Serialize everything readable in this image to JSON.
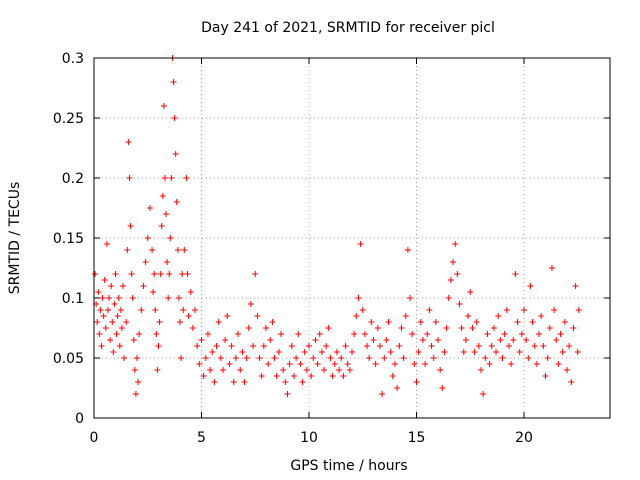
{
  "chart_data": {
    "type": "scatter",
    "title": "Day 241 of 2021, SRMTID for receiver picl",
    "xlabel": "GPS time / hours",
    "ylabel": "SRMTID / TECUs",
    "xlim": [
      0,
      24
    ],
    "ylim": [
      0,
      0.3
    ],
    "xticks": [
      0,
      5,
      10,
      15,
      20
    ],
    "xtick_labels": [
      "0",
      "5",
      "10",
      "15",
      "20"
    ],
    "yticks": [
      0,
      0.05,
      0.1,
      0.15,
      0.2,
      0.25,
      0.3
    ],
    "ytick_labels": [
      "0",
      "0.05",
      "0.1",
      "0.15",
      "0.2",
      "0.25",
      "0.3"
    ],
    "grid": true,
    "marker": "plus",
    "color": "#ff0000",
    "series": [
      {
        "name": "SRMTID",
        "points": [
          [
            0.05,
            0.12
          ],
          [
            0.1,
            0.095
          ],
          [
            0.15,
            0.08
          ],
          [
            0.2,
            0.105
          ],
          [
            0.25,
            0.07
          ],
          [
            0.3,
            0.09
          ],
          [
            0.35,
            0.06
          ],
          [
            0.4,
            0.1
          ],
          [
            0.45,
            0.085
          ],
          [
            0.5,
            0.115
          ],
          [
            0.55,
            0.075
          ],
          [
            0.6,
            0.145
          ],
          [
            0.65,
            0.09
          ],
          [
            0.7,
            0.1
          ],
          [
            0.75,
            0.065
          ],
          [
            0.8,
            0.11
          ],
          [
            0.85,
            0.08
          ],
          [
            0.9,
            0.055
          ],
          [
            0.95,
            0.095
          ],
          [
            1.0,
            0.12
          ],
          [
            1.05,
            0.07
          ],
          [
            1.1,
            0.085
          ],
          [
            1.15,
            0.1
          ],
          [
            1.2,
            0.06
          ],
          [
            1.25,
            0.09
          ],
          [
            1.3,
            0.075
          ],
          [
            1.35,
            0.11
          ],
          [
            1.4,
            0.05
          ],
          [
            1.5,
            0.08
          ],
          [
            1.55,
            0.14
          ],
          [
            1.6,
            0.23
          ],
          [
            1.65,
            0.2
          ],
          [
            1.7,
            0.16
          ],
          [
            1.75,
            0.12
          ],
          [
            1.8,
            0.1
          ],
          [
            1.85,
            0.065
          ],
          [
            1.9,
            0.04
          ],
          [
            1.95,
            0.02
          ],
          [
            2.0,
            0.05
          ],
          [
            2.05,
            0.03
          ],
          [
            2.1,
            0.07
          ],
          [
            2.2,
            0.09
          ],
          [
            2.3,
            0.11
          ],
          [
            2.4,
            0.13
          ],
          [
            2.5,
            0.15
          ],
          [
            2.6,
            0.175
          ],
          [
            2.7,
            0.14
          ],
          [
            2.75,
            0.105
          ],
          [
            2.8,
            0.12
          ],
          [
            2.85,
            0.09
          ],
          [
            2.9,
            0.07
          ],
          [
            2.95,
            0.04
          ],
          [
            3.0,
            0.06
          ],
          [
            3.05,
            0.08
          ],
          [
            3.1,
            0.12
          ],
          [
            3.15,
            0.16
          ],
          [
            3.2,
            0.185
          ],
          [
            3.25,
            0.26
          ],
          [
            3.3,
            0.2
          ],
          [
            3.35,
            0.17
          ],
          [
            3.4,
            0.13
          ],
          [
            3.45,
            0.1
          ],
          [
            3.5,
            0.12
          ],
          [
            3.55,
            0.15
          ],
          [
            3.6,
            0.2
          ],
          [
            3.65,
            0.3
          ],
          [
            3.7,
            0.28
          ],
          [
            3.75,
            0.25
          ],
          [
            3.8,
            0.22
          ],
          [
            3.85,
            0.18
          ],
          [
            3.9,
            0.14
          ],
          [
            3.95,
            0.1
          ],
          [
            4.0,
            0.08
          ],
          [
            4.05,
            0.05
          ],
          [
            4.1,
            0.12
          ],
          [
            4.15,
            0.09
          ],
          [
            4.2,
            0.14
          ],
          [
            4.3,
            0.2
          ],
          [
            4.35,
            0.12
          ],
          [
            4.4,
            0.085
          ],
          [
            4.5,
            0.105
          ],
          [
            4.6,
            0.075
          ],
          [
            4.7,
            0.09
          ],
          [
            4.8,
            0.06
          ],
          [
            4.9,
            0.045
          ],
          [
            5.0,
            0.065
          ],
          [
            5.1,
            0.035
          ],
          [
            5.2,
            0.05
          ],
          [
            5.3,
            0.07
          ],
          [
            5.4,
            0.04
          ],
          [
            5.5,
            0.055
          ],
          [
            5.6,
            0.03
          ],
          [
            5.7,
            0.06
          ],
          [
            5.8,
            0.08
          ],
          [
            5.9,
            0.05
          ],
          [
            6.0,
            0.04
          ],
          [
            6.1,
            0.065
          ],
          [
            6.2,
            0.085
          ],
          [
            6.3,
            0.045
          ],
          [
            6.4,
            0.06
          ],
          [
            6.5,
            0.03
          ],
          [
            6.6,
            0.05
          ],
          [
            6.7,
            0.07
          ],
          [
            6.8,
            0.04
          ],
          [
            6.9,
            0.055
          ],
          [
            7.0,
            0.03
          ],
          [
            7.1,
            0.05
          ],
          [
            7.2,
            0.075
          ],
          [
            7.3,
            0.095
          ],
          [
            7.4,
            0.06
          ],
          [
            7.5,
            0.12
          ],
          [
            7.6,
            0.085
          ],
          [
            7.7,
            0.05
          ],
          [
            7.8,
            0.035
          ],
          [
            7.9,
            0.06
          ],
          [
            8.0,
            0.075
          ],
          [
            8.1,
            0.045
          ],
          [
            8.2,
            0.065
          ],
          [
            8.3,
            0.08
          ],
          [
            8.4,
            0.05
          ],
          [
            8.5,
            0.035
          ],
          [
            8.6,
            0.055
          ],
          [
            8.7,
            0.07
          ],
          [
            8.8,
            0.04
          ],
          [
            8.9,
            0.03
          ],
          [
            9.0,
            0.02
          ],
          [
            9.1,
            0.045
          ],
          [
            9.2,
            0.06
          ],
          [
            9.3,
            0.035
          ],
          [
            9.4,
            0.05
          ],
          [
            9.5,
            0.07
          ],
          [
            9.6,
            0.045
          ],
          [
            9.7,
            0.03
          ],
          [
            9.8,
            0.055
          ],
          [
            9.9,
            0.04
          ],
          [
            10.0,
            0.06
          ],
          [
            10.1,
            0.035
          ],
          [
            10.2,
            0.05
          ],
          [
            10.3,
            0.065
          ],
          [
            10.4,
            0.045
          ],
          [
            10.5,
            0.07
          ],
          [
            10.6,
            0.055
          ],
          [
            10.7,
            0.04
          ],
          [
            10.8,
            0.06
          ],
          [
            10.9,
            0.075
          ],
          [
            11.0,
            0.05
          ],
          [
            11.1,
            0.035
          ],
          [
            11.2,
            0.045
          ],
          [
            11.3,
            0.055
          ],
          [
            11.4,
            0.04
          ],
          [
            11.5,
            0.05
          ],
          [
            11.6,
            0.035
          ],
          [
            11.7,
            0.06
          ],
          [
            11.8,
            0.045
          ],
          [
            11.9,
            0.04
          ],
          [
            12.0,
            0.055
          ],
          [
            12.1,
            0.07
          ],
          [
            12.2,
            0.085
          ],
          [
            12.3,
            0.1
          ],
          [
            12.4,
            0.145
          ],
          [
            12.5,
            0.09
          ],
          [
            12.6,
            0.07
          ],
          [
            12.7,
            0.06
          ],
          [
            12.8,
            0.05
          ],
          [
            12.9,
            0.08
          ],
          [
            13.0,
            0.065
          ],
          [
            13.1,
            0.045
          ],
          [
            13.2,
            0.075
          ],
          [
            13.3,
            0.06
          ],
          [
            13.4,
            0.02
          ],
          [
            13.5,
            0.05
          ],
          [
            13.6,
            0.065
          ],
          [
            13.7,
            0.08
          ],
          [
            13.8,
            0.055
          ],
          [
            13.9,
            0.035
          ],
          [
            14.0,
            0.045
          ],
          [
            14.1,
            0.025
          ],
          [
            14.2,
            0.06
          ],
          [
            14.3,
            0.075
          ],
          [
            14.4,
            0.05
          ],
          [
            14.5,
            0.085
          ],
          [
            14.6,
            0.14
          ],
          [
            14.7,
            0.1
          ],
          [
            14.8,
            0.07
          ],
          [
            14.9,
            0.045
          ],
          [
            15.0,
            0.03
          ],
          [
            15.1,
            0.055
          ],
          [
            15.2,
            0.08
          ],
          [
            15.3,
            0.065
          ],
          [
            15.4,
            0.045
          ],
          [
            15.5,
            0.07
          ],
          [
            15.6,
            0.09
          ],
          [
            15.7,
            0.06
          ],
          [
            15.8,
            0.05
          ],
          [
            15.9,
            0.08
          ],
          [
            16.0,
            0.065
          ],
          [
            16.1,
            0.04
          ],
          [
            16.2,
            0.025
          ],
          [
            16.3,
            0.055
          ],
          [
            16.4,
            0.075
          ],
          [
            16.5,
            0.1
          ],
          [
            16.6,
            0.115
          ],
          [
            16.7,
            0.13
          ],
          [
            16.8,
            0.145
          ],
          [
            16.9,
            0.12
          ],
          [
            17.0,
            0.095
          ],
          [
            17.1,
            0.075
          ],
          [
            17.2,
            0.055
          ],
          [
            17.3,
            0.065
          ],
          [
            17.4,
            0.085
          ],
          [
            17.5,
            0.105
          ],
          [
            17.6,
            0.075
          ],
          [
            17.7,
            0.055
          ],
          [
            17.8,
            0.08
          ],
          [
            17.9,
            0.06
          ],
          [
            18.0,
            0.04
          ],
          [
            18.1,
            0.02
          ],
          [
            18.2,
            0.05
          ],
          [
            18.3,
            0.07
          ],
          [
            18.4,
            0.045
          ],
          [
            18.5,
            0.06
          ],
          [
            18.6,
            0.075
          ],
          [
            18.7,
            0.055
          ],
          [
            18.8,
            0.085
          ],
          [
            18.9,
            0.065
          ],
          [
            19.0,
            0.05
          ],
          [
            19.1,
            0.07
          ],
          [
            19.2,
            0.09
          ],
          [
            19.3,
            0.06
          ],
          [
            19.4,
            0.045
          ],
          [
            19.5,
            0.065
          ],
          [
            19.6,
            0.12
          ],
          [
            19.7,
            0.08
          ],
          [
            19.8,
            0.055
          ],
          [
            19.9,
            0.07
          ],
          [
            20.0,
            0.09
          ],
          [
            20.1,
            0.065
          ],
          [
            20.2,
            0.05
          ],
          [
            20.3,
            0.11
          ],
          [
            20.4,
            0.08
          ],
          [
            20.5,
            0.06
          ],
          [
            20.6,
            0.045
          ],
          [
            20.7,
            0.07
          ],
          [
            20.8,
            0.085
          ],
          [
            20.9,
            0.06
          ],
          [
            21.0,
            0.035
          ],
          [
            21.1,
            0.05
          ],
          [
            21.2,
            0.075
          ],
          [
            21.3,
            0.125
          ],
          [
            21.4,
            0.09
          ],
          [
            21.5,
            0.065
          ],
          [
            21.6,
            0.045
          ],
          [
            21.7,
            0.07
          ],
          [
            21.8,
            0.055
          ],
          [
            21.9,
            0.08
          ],
          [
            22.0,
            0.04
          ],
          [
            22.1,
            0.06
          ],
          [
            22.2,
            0.03
          ],
          [
            22.3,
            0.075
          ],
          [
            22.4,
            0.11
          ],
          [
            22.5,
            0.055
          ],
          [
            22.55,
            0.09
          ]
        ]
      }
    ]
  }
}
